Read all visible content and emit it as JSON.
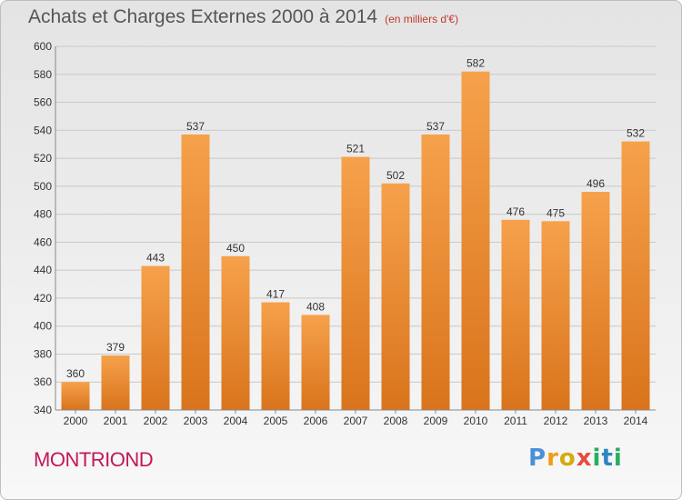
{
  "header": {
    "title": "Achats et Charges Externes 2000 à 2014",
    "subtitle": "(en milliers d'€)"
  },
  "footer": {
    "place": "MONTRIOND",
    "logo": "Proxiti"
  },
  "colors": {
    "bar_top": "#f6a14b",
    "bar_bottom": "#d9741c",
    "grid": "#c8c8c8",
    "axis_text": "#333333",
    "title": "#555555",
    "subtitle": "#c0392b",
    "place": "#c2185b"
  },
  "chart_data": {
    "type": "bar",
    "categories": [
      "2000",
      "2001",
      "2002",
      "2003",
      "2004",
      "2005",
      "2006",
      "2007",
      "2008",
      "2009",
      "2010",
      "2011",
      "2012",
      "2013",
      "2014"
    ],
    "values": [
      360,
      379,
      443,
      537,
      450,
      417,
      408,
      521,
      502,
      537,
      582,
      476,
      475,
      496,
      532
    ],
    "title": "Achats et Charges Externes 2000 à 2014",
    "subtitle": "(en milliers d'€)",
    "ylim": [
      340,
      600
    ],
    "yticks": [
      340,
      360,
      380,
      400,
      420,
      440,
      460,
      480,
      500,
      520,
      540,
      560,
      580,
      600
    ],
    "grid": true,
    "data_labels": true
  }
}
